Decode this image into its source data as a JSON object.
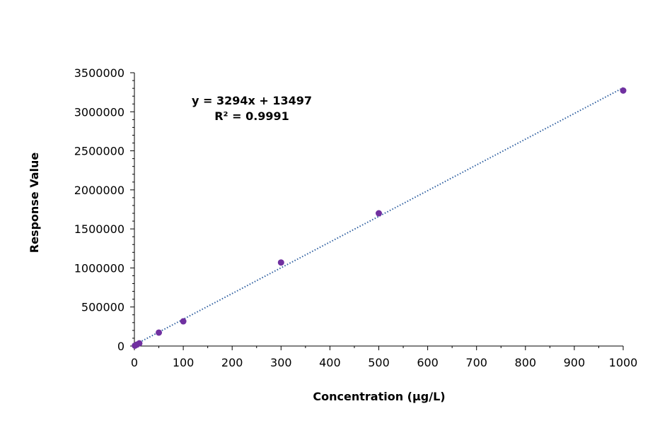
{
  "chart_data": {
    "type": "scatter",
    "xlabel": "Concentration (µg/L)",
    "ylabel": "Response Value",
    "xlim": [
      0,
      1000
    ],
    "ylim": [
      0,
      3500000
    ],
    "xticks": [
      "0",
      "100",
      "200",
      "300",
      "400",
      "500",
      "600",
      "700",
      "800",
      "900",
      "1000"
    ],
    "yticks": [
      "0",
      "500000",
      "1000000",
      "1500000",
      "2000000",
      "2500000",
      "3000000",
      "3500000"
    ],
    "grid": false,
    "points": [
      {
        "x": 1,
        "y": 5000
      },
      {
        "x": 5,
        "y": 18000
      },
      {
        "x": 10,
        "y": 35000
      },
      {
        "x": 50,
        "y": 172000
      },
      {
        "x": 100,
        "y": 316000
      },
      {
        "x": 300,
        "y": 1070000
      },
      {
        "x": 500,
        "y": 1700000
      },
      {
        "x": 1000,
        "y": 3272000
      }
    ],
    "point_color": "#7030a0",
    "trendline": {
      "type": "linear",
      "slope": 3294,
      "intercept": 13497,
      "color": "#2e5fa0",
      "style": "dotted"
    },
    "annotation": {
      "equation": "y = 3294x + 13497",
      "r_squared": "R² = 0.9991"
    }
  }
}
